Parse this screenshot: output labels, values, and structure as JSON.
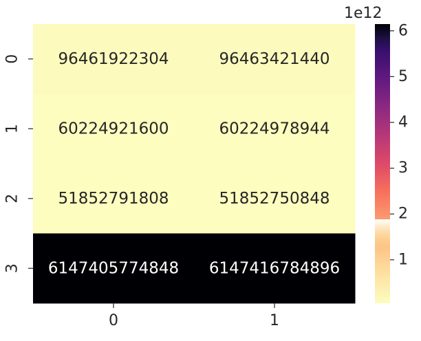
{
  "chart_data": {
    "type": "heatmap",
    "title": "",
    "xlabel": "",
    "ylabel": "",
    "x_categories": [
      "0",
      "1"
    ],
    "y_categories": [
      "0",
      "1",
      "2",
      "3"
    ],
    "values": [
      [
        96461922304,
        96463421440
      ],
      [
        60224921600,
        60224978944
      ],
      [
        51852791808,
        51852750848
      ],
      [
        6147405774848,
        6147416784896
      ]
    ],
    "cell_labels": [
      [
        "96461922304",
        "96463421440"
      ],
      [
        "60224921600",
        "60224978944"
      ],
      [
        "51852791808",
        "51852750848"
      ],
      [
        "6147405774848",
        "6147416784896"
      ]
    ],
    "colormap": "magma_r",
    "colorbar": {
      "ticks": [
        1,
        2,
        3,
        4,
        5,
        6
      ],
      "tick_labels": [
        "1",
        "2",
        "3",
        "4",
        "5",
        "6"
      ],
      "offset_text": "1e12",
      "range": [
        51852750848,
        6147416784896
      ]
    },
    "colors": {
      "low": "#fcfdbf",
      "high": "#000004",
      "light_text": "#ffffff",
      "dark_text": "#262626"
    }
  }
}
